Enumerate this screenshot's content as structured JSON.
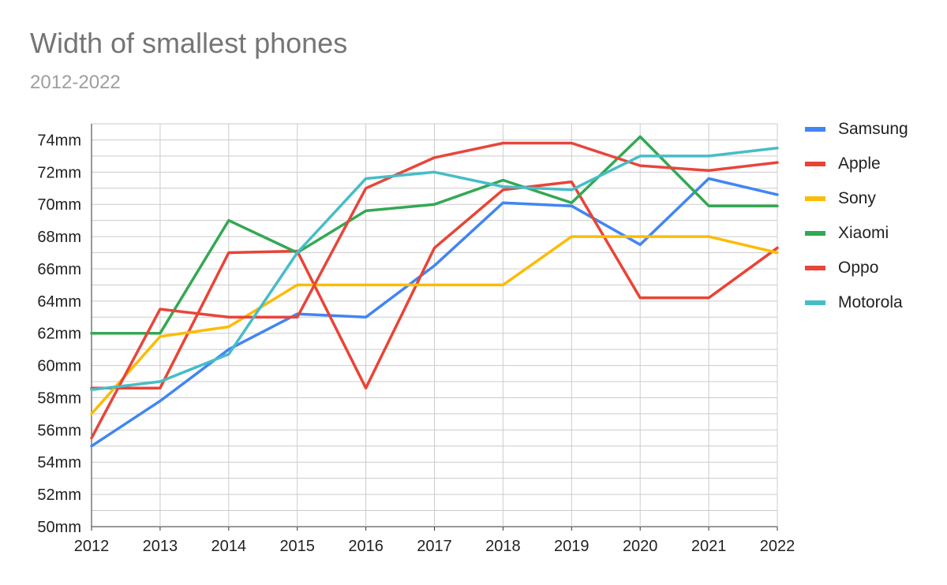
{
  "chart_data": {
    "type": "line",
    "title": "Width of smallest phones",
    "subtitle": "2012-2022",
    "xlabel": "",
    "ylabel": "",
    "x": [
      "2012",
      "2013",
      "2014",
      "2015",
      "2016",
      "2017",
      "2018",
      "2019",
      "2020",
      "2021",
      "2022"
    ],
    "ylim": [
      50,
      75
    ],
    "y_ticks": [
      "50mm",
      "52mm",
      "54mm",
      "56mm",
      "58mm",
      "60mm",
      "62mm",
      "64mm",
      "66mm",
      "68mm",
      "70mm",
      "72mm",
      "74mm"
    ],
    "y_tick_values": [
      50,
      52,
      54,
      56,
      58,
      60,
      62,
      64,
      66,
      68,
      70,
      72,
      74
    ],
    "grid": true,
    "legend_position": "right",
    "series": [
      {
        "name": "Samsung",
        "color": "#4285f4",
        "values": [
          55.0,
          57.8,
          61.0,
          63.2,
          63.0,
          66.2,
          70.1,
          69.9,
          67.5,
          71.6,
          70.6
        ]
      },
      {
        "name": "Apple",
        "color": "#ea4335",
        "values": [
          58.6,
          58.6,
          67.0,
          67.1,
          58.6,
          67.3,
          70.9,
          71.4,
          64.2,
          64.2,
          67.3
        ]
      },
      {
        "name": "Sony",
        "color": "#fbbc04",
        "values": [
          57.0,
          61.8,
          62.4,
          65.0,
          65.0,
          65.0,
          65.0,
          68.0,
          68.0,
          68.0,
          67.0
        ]
      },
      {
        "name": "Xiaomi",
        "color": "#34a853",
        "values": [
          62.0,
          62.0,
          69.0,
          67.0,
          69.6,
          70.0,
          71.5,
          70.1,
          74.2,
          69.9,
          69.9
        ]
      },
      {
        "name": "Oppo",
        "color": "#e8453c",
        "values": [
          55.5,
          63.5,
          63.0,
          63.0,
          71.0,
          72.9,
          73.8,
          73.8,
          72.4,
          72.1,
          72.6
        ]
      },
      {
        "name": "Motorola",
        "color": "#46bdc6",
        "values": [
          58.5,
          59.0,
          60.7,
          67.0,
          71.6,
          72.0,
          71.1,
          70.9,
          73.0,
          73.0,
          73.5
        ]
      }
    ]
  }
}
